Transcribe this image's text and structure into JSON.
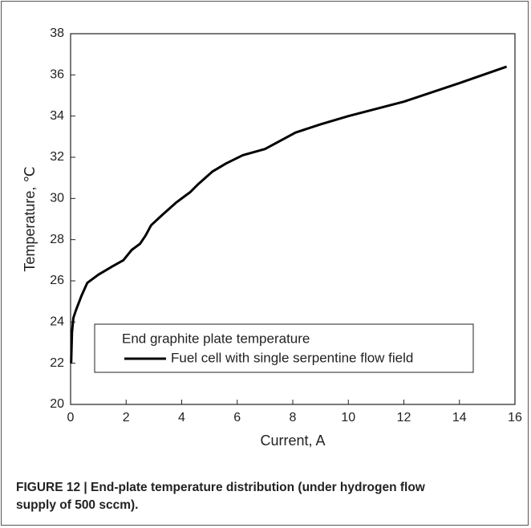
{
  "chart_data": {
    "type": "line",
    "xlabel": "Current, A",
    "ylabel": "Temperature, ℃",
    "legend_title": "End graphite plate temperature",
    "legend": "lower-right",
    "x": [
      0.02,
      0.05,
      0.1,
      0.2,
      0.4,
      0.6,
      1,
      1.5,
      1.9,
      2.2,
      2.5,
      2.7,
      2.9,
      3.3,
      3.8,
      4.1,
      4.3,
      4.6,
      5.1,
      5.6,
      6.2,
      7,
      8.1,
      9,
      10,
      12,
      14,
      15.7
    ],
    "series": [
      {
        "name": "Fuel cell with single serpentine flow field",
        "color": "#000000",
        "values": [
          22,
          23.5,
          24.2,
          24.6,
          25.3,
          25.9,
          26.3,
          26.7,
          27,
          27.5,
          27.8,
          28.2,
          28.7,
          29.2,
          29.8,
          30.1,
          30.3,
          30.7,
          31.3,
          31.7,
          32.1,
          32.4,
          33.2,
          33.6,
          34,
          34.7,
          35.6,
          36.4
        ]
      }
    ],
    "xlim": [
      0,
      16
    ],
    "xticks": [
      0,
      2,
      4,
      6,
      8,
      10,
      12,
      14,
      16
    ],
    "ylim": [
      20,
      38
    ],
    "yticks": [
      20,
      22,
      24,
      26,
      28,
      30,
      32,
      34,
      36,
      38
    ],
    "grid": false
  },
  "caption": "FIGURE 12 | End-plate temperature distribution (under hydrogen flow supply of 500 sccm)."
}
